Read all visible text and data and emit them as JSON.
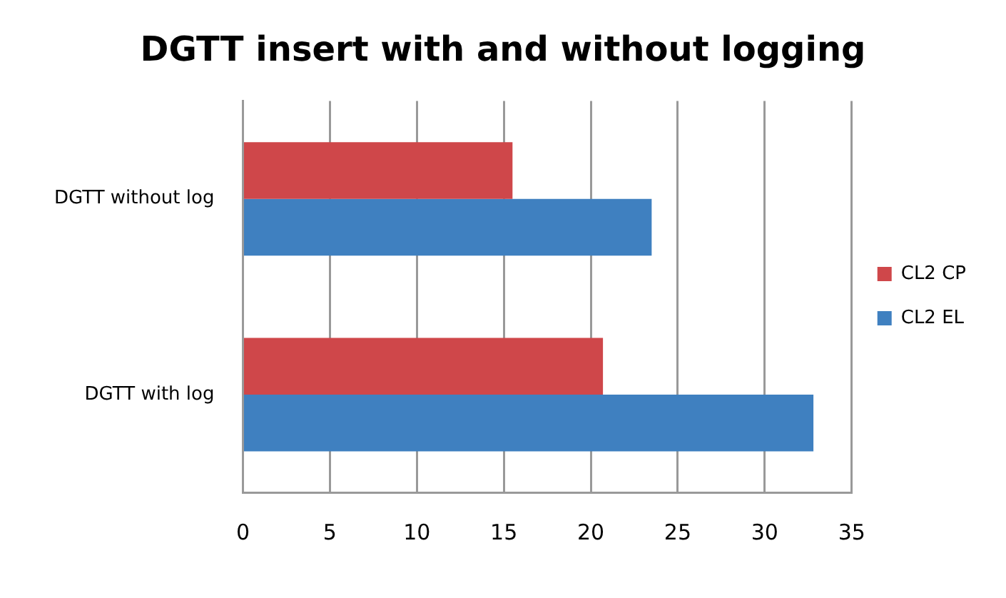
{
  "chart_data": {
    "type": "bar",
    "orientation": "horizontal",
    "title": "DGTT insert with and without logging",
    "categories": [
      "DGTT without log",
      "DGTT with log"
    ],
    "series": [
      {
        "name": "CL2 CP",
        "color": "#cf474a",
        "values": [
          15.5,
          20.7
        ]
      },
      {
        "name": "CL2 EL",
        "color": "#3f80c0",
        "values": [
          23.5,
          32.8
        ]
      }
    ],
    "xlim": [
      0,
      35
    ],
    "xticks": [
      0,
      5,
      10,
      15,
      20,
      25,
      30,
      35
    ],
    "grid": "x",
    "legend": "right"
  }
}
